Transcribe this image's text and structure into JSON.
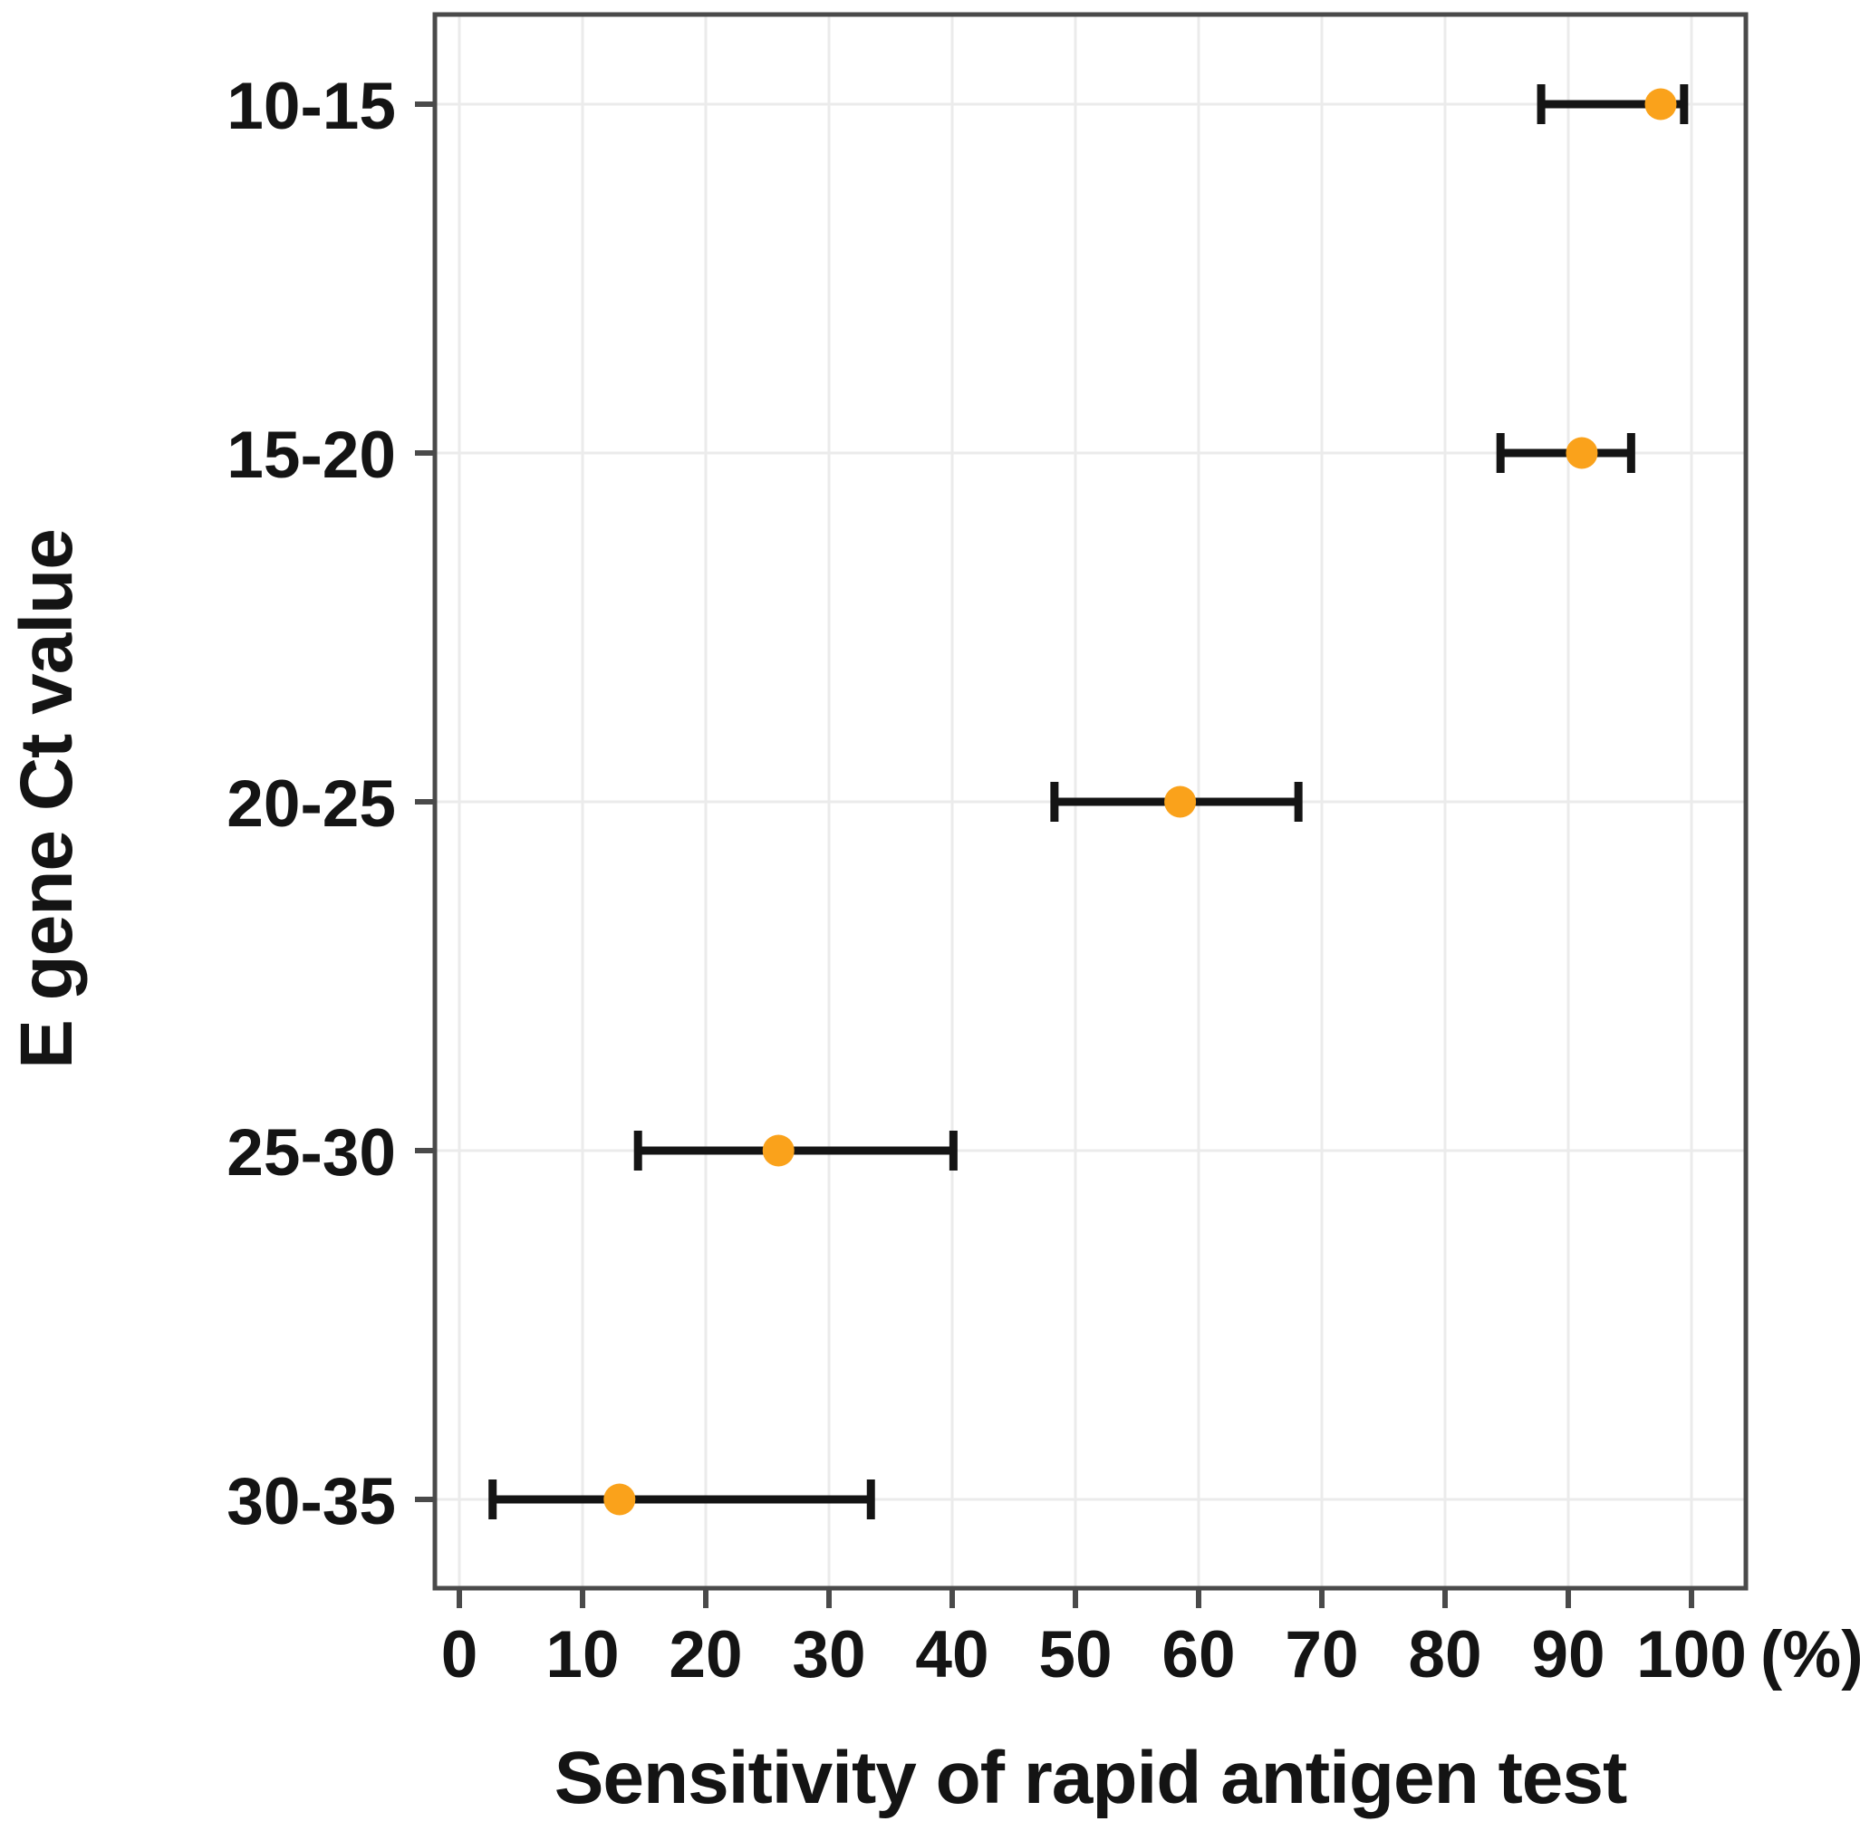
{
  "chart_data": {
    "type": "scatter",
    "subtype": "horizontal-error-bar",
    "title": "",
    "xlabel": "Sensitivity of rapid antigen test",
    "ylabel": "E gene Ct value",
    "x_unit_label": "(%)",
    "xlim": [
      -2,
      104.5
    ],
    "x_ticks": [
      0,
      10,
      20,
      30,
      40,
      50,
      60,
      70,
      80,
      90,
      100
    ],
    "grid": true,
    "legend_position": "none",
    "categories": [
      "10-15",
      "15-20",
      "20-25",
      "25-30",
      "30-35"
    ],
    "series": [
      {
        "name": "sensitivity",
        "points": [
          {
            "category": "10-15",
            "value": 97.5,
            "ci_low": 87.8,
            "ci_high": 99.4
          },
          {
            "category": "15-20",
            "value": 91.1,
            "ci_low": 84.5,
            "ci_high": 95.1
          },
          {
            "category": "20-25",
            "value": 58.5,
            "ci_low": 48.3,
            "ci_high": 68.1
          },
          {
            "category": "25-30",
            "value": 25.9,
            "ci_low": 14.5,
            "ci_high": 40.1
          },
          {
            "category": "30-35",
            "value": 13.0,
            "ci_low": 2.7,
            "ci_high": 33.4
          }
        ]
      }
    ],
    "colors": {
      "point": "#FAA21B",
      "error_bar": "#141414",
      "gridline": "#EBEBEB",
      "plot_border": "#4A4A4A",
      "tick": "#4A4A4A",
      "text": "#141414",
      "background": "#FFFFFF"
    }
  }
}
